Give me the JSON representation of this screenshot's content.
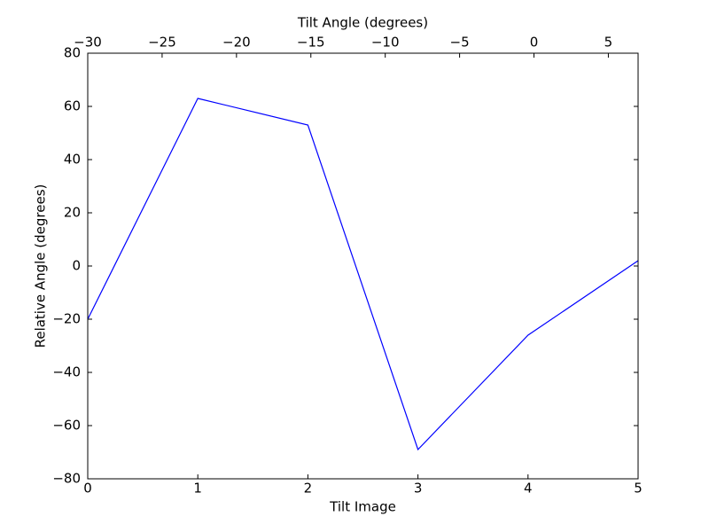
{
  "chart_data": {
    "type": "line",
    "xlabel": "Tilt Image",
    "ylabel": "Relative Angle (degrees)",
    "x2label": "Tilt Angle (degrees)",
    "x": [
      0,
      1,
      2,
      3,
      4,
      5
    ],
    "values": [
      -20,
      63,
      53,
      -69,
      -26,
      2
    ],
    "color": "#0000ff",
    "xlim": [
      0,
      5
    ],
    "xticks": [
      0,
      1,
      2,
      3,
      4,
      5
    ],
    "ylim": [
      -80,
      80
    ],
    "yticks": [
      {
        "value": -80,
        "label": "−80"
      },
      {
        "value": -60,
        "label": "−60"
      },
      {
        "value": -40,
        "label": "−40"
      },
      {
        "value": -20,
        "label": "−20"
      },
      0,
      20,
      40,
      60,
      80
    ],
    "x2lim": [
      -30,
      7
    ],
    "x2ticks": [
      {
        "value": -30,
        "label": "−30"
      },
      {
        "value": -25,
        "label": "−25"
      },
      {
        "value": -20,
        "label": "−20"
      },
      {
        "value": -15,
        "label": "−15"
      },
      {
        "value": -10,
        "label": "−10"
      },
      {
        "value": -5,
        "label": "−5"
      },
      0,
      5
    ],
    "grid": false
  }
}
